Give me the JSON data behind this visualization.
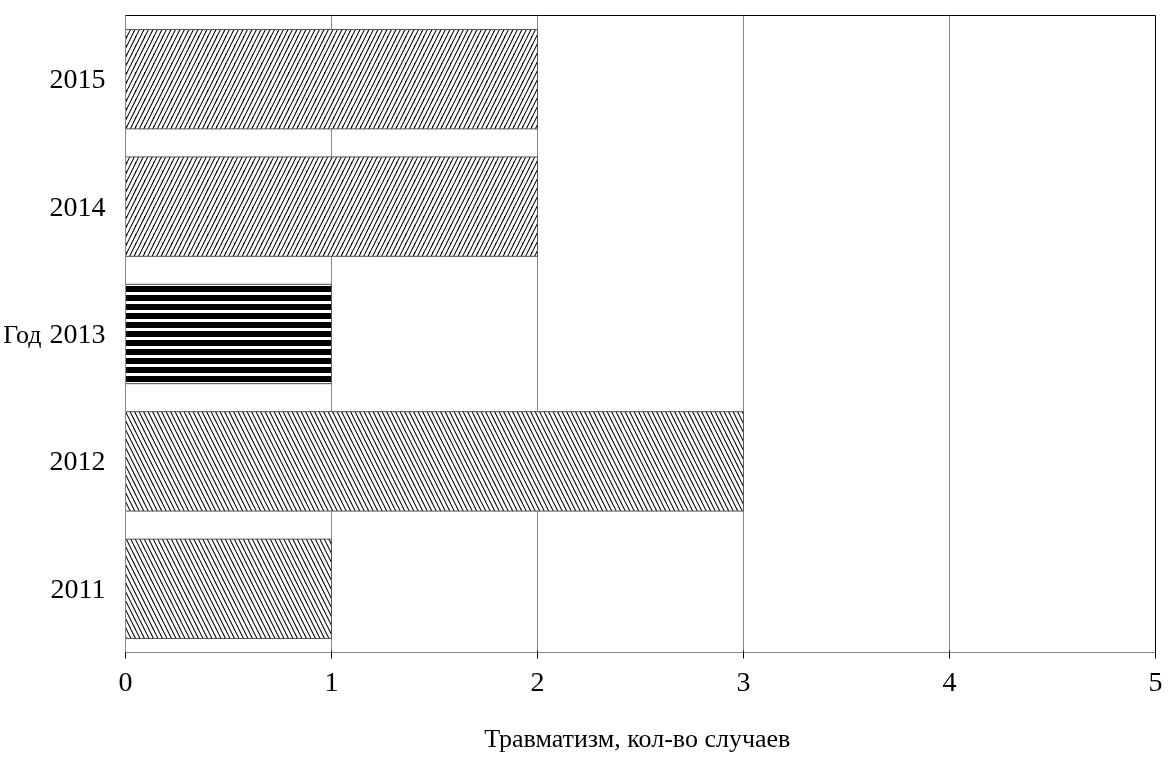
{
  "chart_data": {
    "type": "bar",
    "orientation": "horizontal",
    "categories": [
      "2015",
      "2014",
      "2013",
      "2012",
      "2011"
    ],
    "values": [
      2,
      2,
      1,
      3,
      1
    ],
    "color": "#000000",
    "xlim": [
      0,
      5
    ],
    "xticks": [
      0,
      1,
      2,
      3,
      4,
      5
    ],
    "xlabel": "Травматизм,  кол-во случаев",
    "ylabel": "Год",
    "grid": "x"
  }
}
